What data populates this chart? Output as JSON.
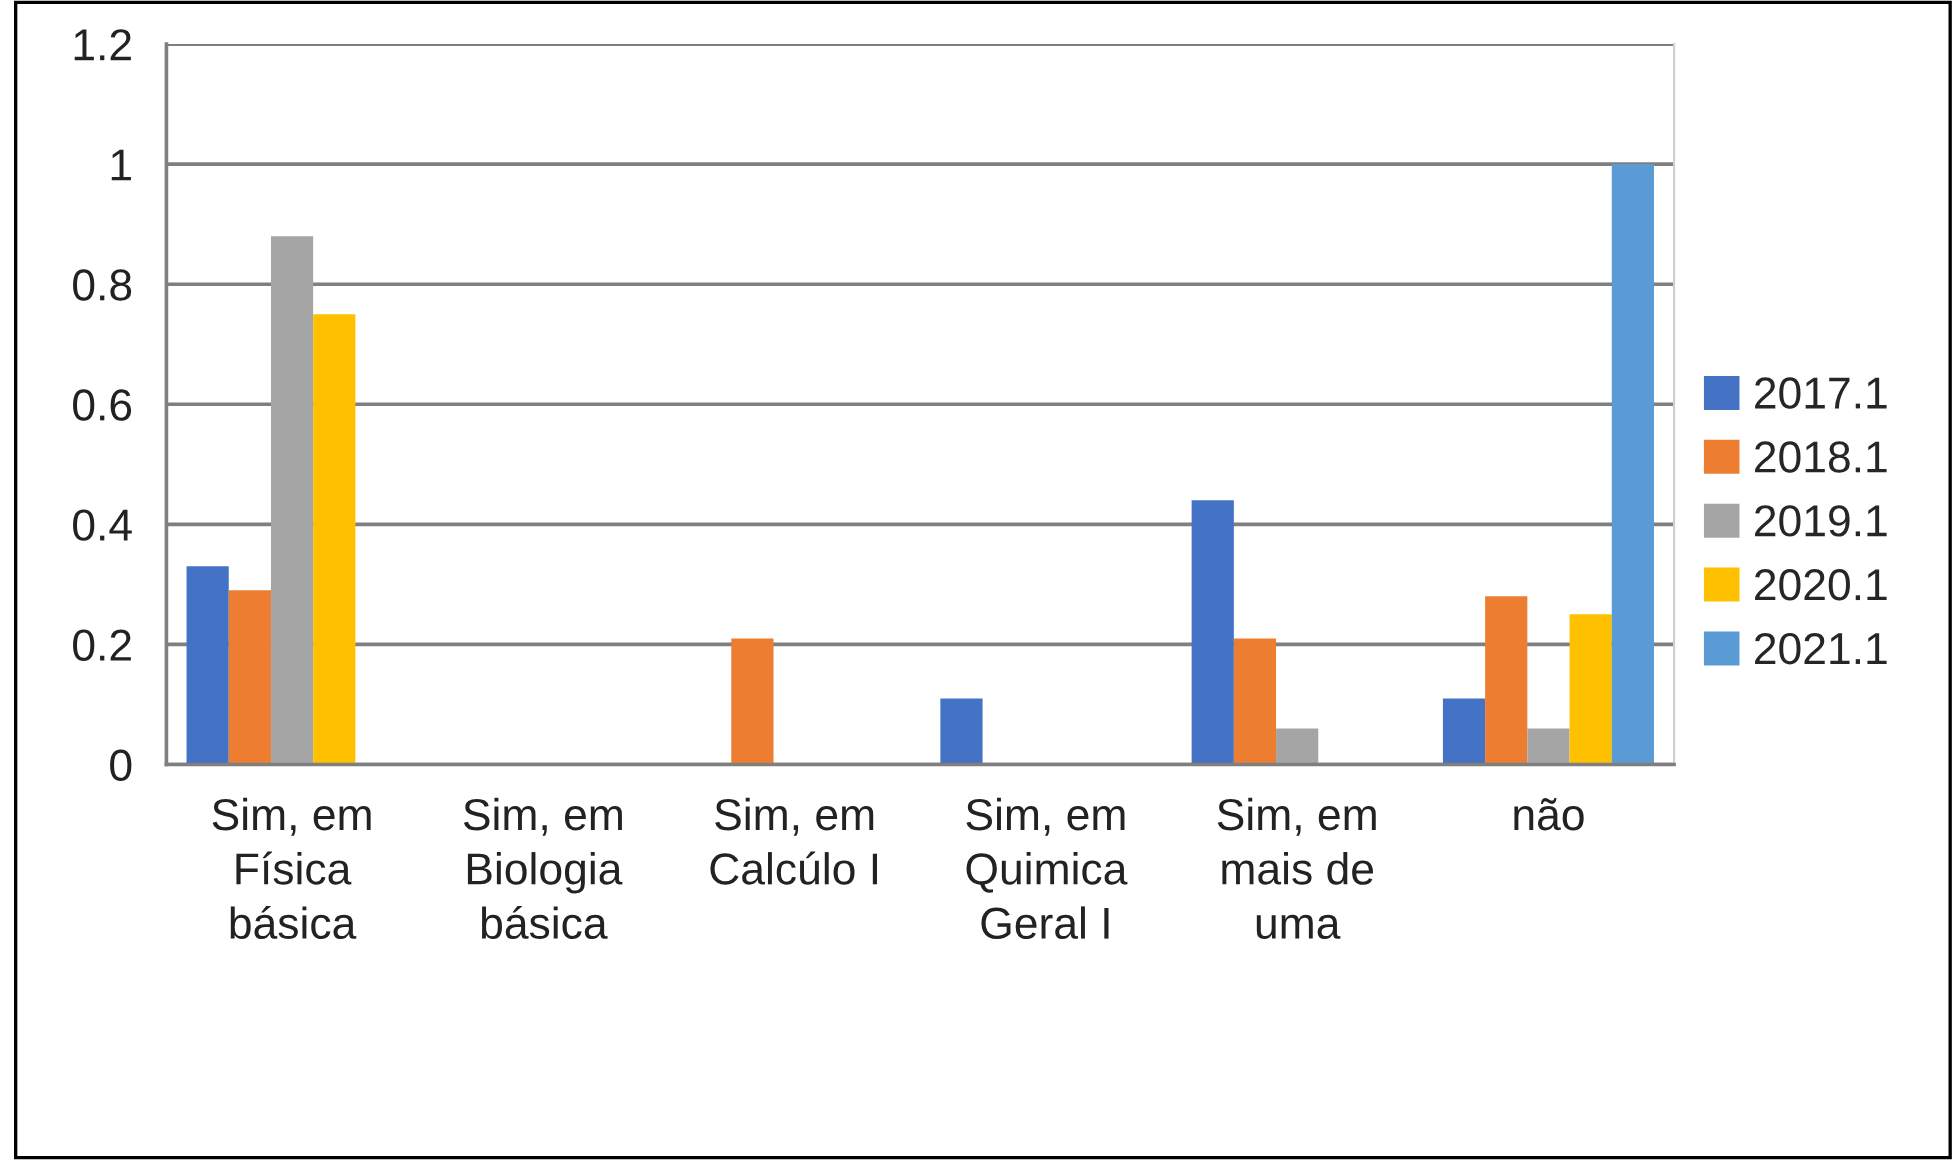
{
  "chart_data": {
    "type": "bar",
    "categories": [
      "Sim, em\nFísica\nbásica",
      "Sim, em\nBiologia\nbásica",
      "Sim, em\nCalcúlo I",
      "Sim, em\nQuimica\nGeral I",
      "Sim, em\nmais de\numa",
      "não"
    ],
    "series": [
      {
        "name": "2017.1",
        "color": "#4472c4",
        "values": [
          0.33,
          0,
          0,
          0.11,
          0.44,
          0.11
        ]
      },
      {
        "name": "2018.1",
        "color": "#ed7d31",
        "values": [
          0.29,
          0,
          0.21,
          0,
          0.21,
          0.28
        ]
      },
      {
        "name": "2019.1",
        "color": "#a5a5a5",
        "values": [
          0.88,
          0,
          0,
          0,
          0.06,
          0.06
        ]
      },
      {
        "name": "2020.1",
        "color": "#ffc000",
        "values": [
          0.75,
          0,
          0,
          0,
          0,
          0.25
        ]
      },
      {
        "name": "2021.1",
        "color": "#5b9bd5",
        "values": [
          0,
          0,
          0,
          0,
          0,
          1
        ]
      }
    ],
    "ylim": [
      0,
      1.2
    ],
    "yticks": [
      0,
      0.2,
      0.4,
      0.6,
      0.8,
      1,
      1.2
    ],
    "grid": "y",
    "legend": "right"
  }
}
